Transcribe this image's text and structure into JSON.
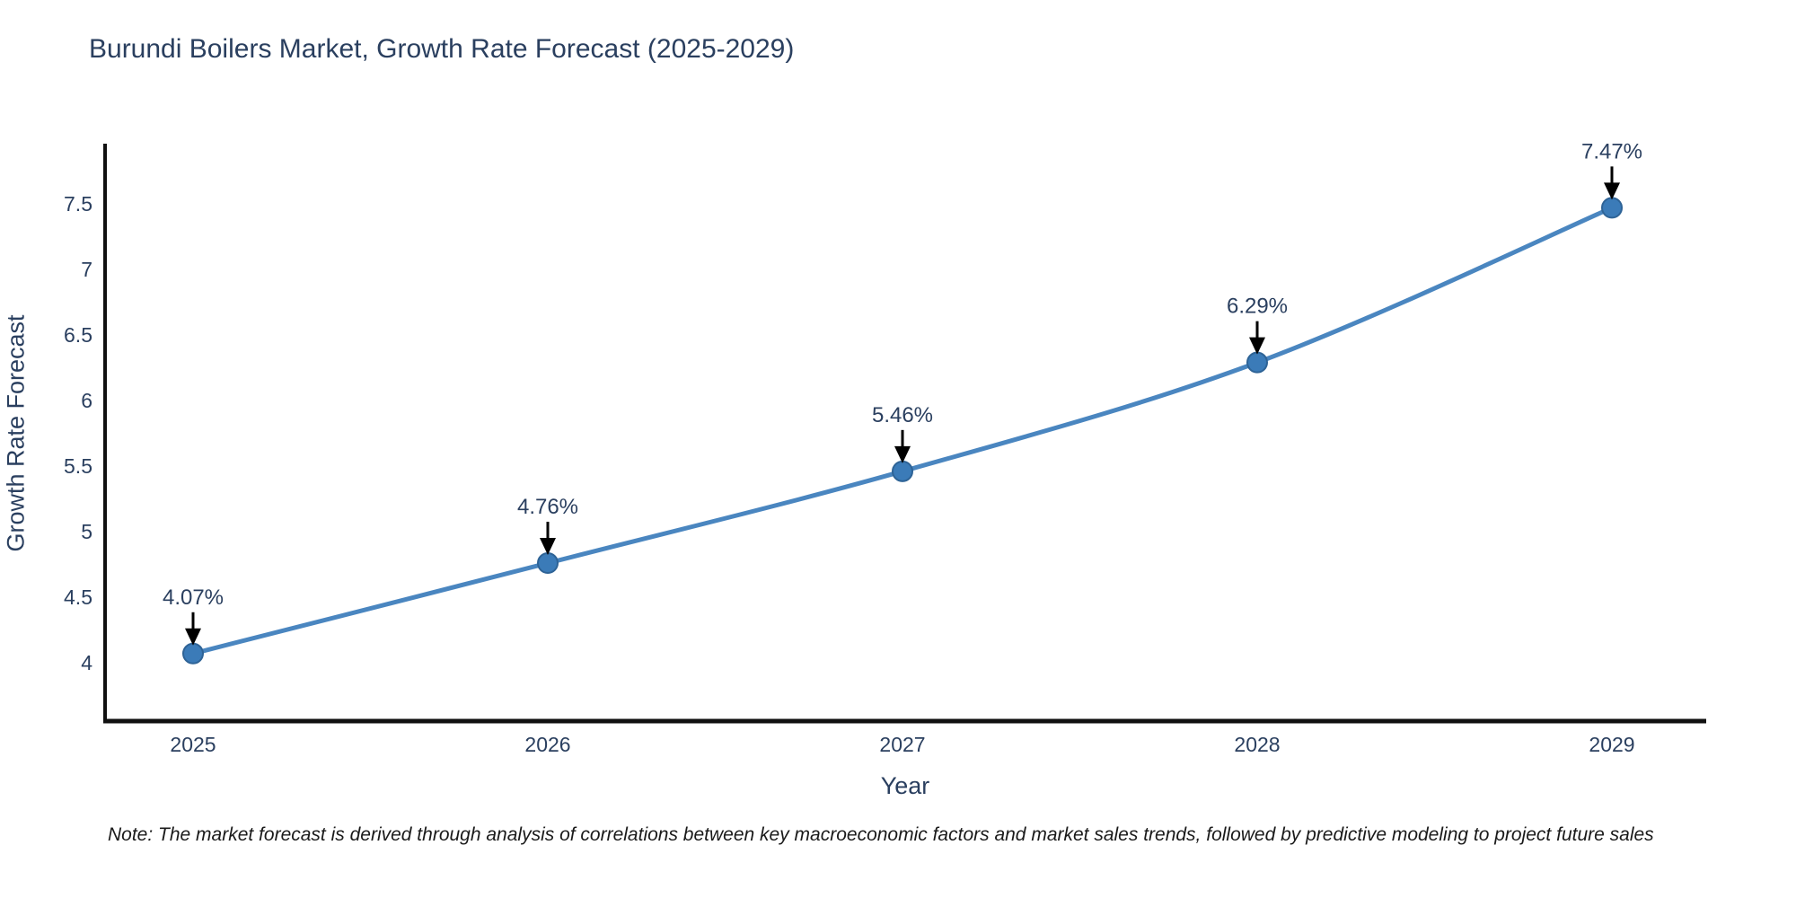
{
  "chart": {
    "note": "Note: The market forecast is derived through analysis of correlations between key macroeconomic factors and market sales trends, followed by predictive modeling to project future sales",
    "colors": {
      "line": "#4a86c0",
      "marker_fill": "#3b7bb8",
      "marker_edge": "#2e6396",
      "axis_line": "#111111",
      "label_text": "#2a3f5f",
      "annotation_text": "#2a3f5f",
      "arrow": "#000000",
      "background": "#ffffff"
    }
  },
  "chart_data": {
    "type": "line",
    "title": "Burundi Boilers Market, Growth Rate Forecast (2025-2029)",
    "xlabel": "Year",
    "ylabel": "Growth Rate Forecast",
    "categories": [
      "2025",
      "2026",
      "2027",
      "2028",
      "2029"
    ],
    "series": [
      {
        "name": "Growth Rate Forecast",
        "values": [
          4.07,
          4.76,
          5.46,
          6.29,
          7.47
        ],
        "point_labels": [
          "4.07%",
          "4.76%",
          "5.46%",
          "6.29%",
          "7.47%"
        ]
      }
    ],
    "y_ticks": [
      "4",
      "4.5",
      "5",
      "5.5",
      "6",
      "6.5",
      "7",
      "7.5"
    ],
    "y_tick_values": [
      4,
      4.5,
      5,
      5.5,
      6,
      6.5,
      7,
      7.5
    ],
    "ylim": [
      3.56,
      7.95
    ],
    "grid": false,
    "legend_position": "none",
    "annotation_style": "value labels with down-arrows above each point"
  }
}
